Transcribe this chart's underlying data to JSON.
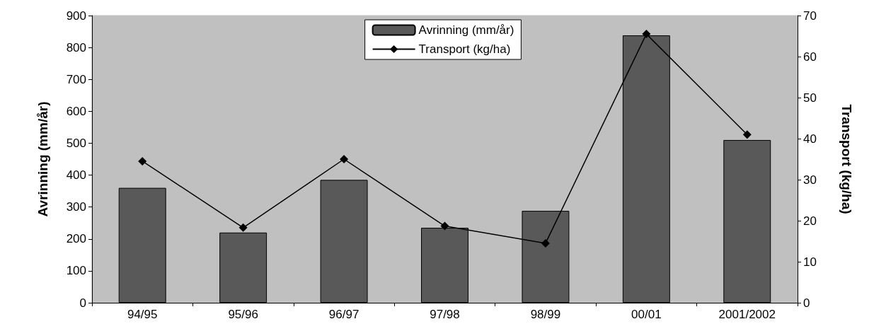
{
  "chart_data": {
    "type": "bar",
    "categories": [
      "94/95",
      "95/96",
      "96/97",
      "97/98",
      "98/99",
      "00/01",
      "2001/2002"
    ],
    "series": [
      {
        "name": "Avrinning (mm/år)",
        "color": "#595959",
        "values": [
          360,
          220,
          385,
          235,
          288,
          838,
          510
        ]
      },
      {
        "name": "Transport (kg/ha)",
        "type": "line",
        "axis": "y2",
        "color": "#000000",
        "marker": "diamond",
        "values": [
          34.5,
          18.3,
          35,
          18.7,
          14.5,
          65.5,
          41
        ]
      }
    ],
    "ylabel": "Avrinning (mm/år)",
    "y2label": "Transport (kg/ha)",
    "ylim": [
      0,
      900
    ],
    "yticks": [
      0,
      100,
      200,
      300,
      400,
      500,
      600,
      700,
      800,
      900
    ],
    "y2lim": [
      0,
      70
    ],
    "y2ticks": [
      0,
      10,
      20,
      30,
      40,
      50,
      60,
      70
    ],
    "grid": false,
    "legend": "top"
  }
}
